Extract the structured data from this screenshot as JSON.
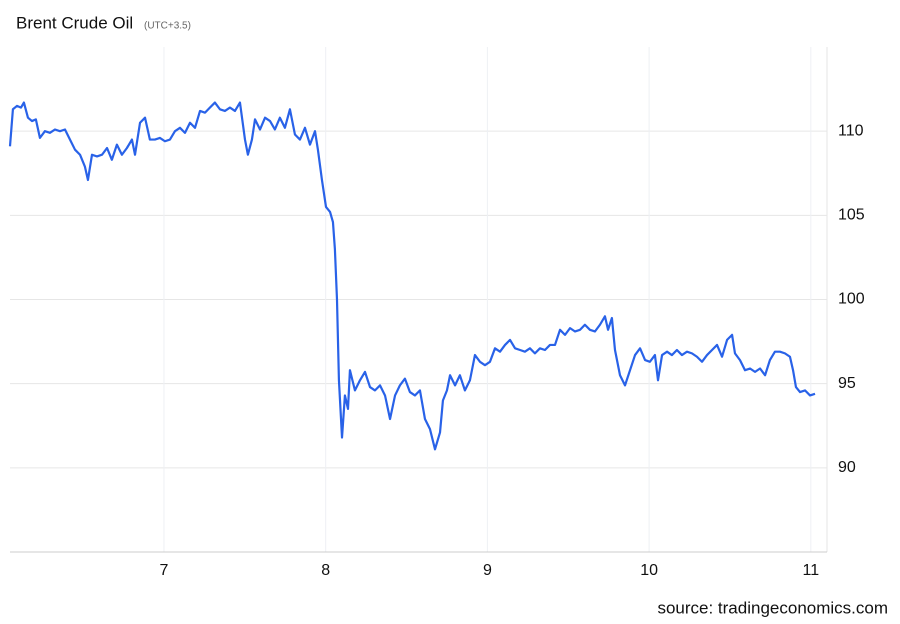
{
  "chart_data": {
    "type": "line",
    "title": "Brent Crude Oil",
    "subtitle": "(UTC+3.5)",
    "source": "source: tradingeconomics.com",
    "x": [
      6.048,
      6.066,
      6.091,
      6.116,
      6.134,
      6.159,
      6.184,
      6.208,
      6.233,
      6.264,
      6.295,
      6.326,
      6.357,
      6.388,
      6.419,
      6.45,
      6.481,
      6.511,
      6.53,
      6.555,
      6.586,
      6.617,
      6.648,
      6.678,
      6.709,
      6.74,
      6.771,
      6.802,
      6.821,
      6.852,
      6.883,
      6.913,
      6.944,
      6.975,
      7.006,
      7.037,
      7.068,
      7.099,
      7.13,
      7.161,
      7.192,
      7.223,
      7.254,
      7.284,
      7.315,
      7.346,
      7.377,
      7.408,
      7.439,
      7.47,
      7.501,
      7.519,
      7.544,
      7.563,
      7.594,
      7.625,
      7.656,
      7.686,
      7.717,
      7.748,
      7.779,
      7.81,
      7.841,
      7.872,
      7.903,
      7.934,
      7.952,
      7.977,
      8.002,
      8.027,
      8.045,
      8.057,
      8.07,
      8.082,
      8.101,
      8.119,
      8.138,
      8.15,
      8.181,
      8.212,
      8.243,
      8.274,
      8.305,
      8.336,
      8.367,
      8.398,
      8.429,
      8.459,
      8.49,
      8.521,
      8.552,
      8.583,
      8.614,
      8.645,
      8.676,
      8.707,
      8.725,
      8.75,
      8.769,
      8.8,
      8.83,
      8.861,
      8.892,
      8.923,
      8.954,
      8.985,
      9.016,
      9.047,
      9.078,
      9.109,
      9.14,
      9.171,
      9.202,
      9.232,
      9.263,
      9.294,
      9.325,
      9.356,
      9.387,
      9.418,
      9.449,
      9.48,
      9.511,
      9.542,
      9.573,
      9.603,
      9.634,
      9.665,
      9.696,
      9.727,
      9.746,
      9.77,
      9.789,
      9.82,
      9.851,
      9.882,
      9.913,
      9.944,
      9.975,
      10.005,
      10.036,
      10.055,
      10.08,
      10.111,
      10.141,
      10.172,
      10.203,
      10.234,
      10.265,
      10.296,
      10.327,
      10.358,
      10.389,
      10.42,
      10.451,
      10.482,
      10.513,
      10.531,
      10.562,
      10.593,
      10.624,
      10.655,
      10.686,
      10.717,
      10.747,
      10.778,
      10.809,
      10.84,
      10.871,
      10.89,
      10.908,
      10.933,
      10.964,
      10.995,
      11.026
    ],
    "series": [
      {
        "name": "Brent Crude Oil",
        "color": "#2962e8",
        "values": [
          109.1,
          111.3,
          111.5,
          111.4,
          111.7,
          110.8,
          110.6,
          110.7,
          109.6,
          110.0,
          109.9,
          110.1,
          110.0,
          110.1,
          109.5,
          108.9,
          108.6,
          107.9,
          107.1,
          108.6,
          108.5,
          108.6,
          109.0,
          108.3,
          109.2,
          108.6,
          109.0,
          109.5,
          108.6,
          110.5,
          110.8,
          109.5,
          109.5,
          109.6,
          109.4,
          109.5,
          110.0,
          110.2,
          109.9,
          110.5,
          110.2,
          111.2,
          111.1,
          111.4,
          111.7,
          111.3,
          111.2,
          111.4,
          111.2,
          111.7,
          109.5,
          108.6,
          109.5,
          110.7,
          110.1,
          110.8,
          110.6,
          110.1,
          110.8,
          110.2,
          111.3,
          109.8,
          109.5,
          110.2,
          109.2,
          110.0,
          108.9,
          107.1,
          105.5,
          105.2,
          104.6,
          103.0,
          100.0,
          95.2,
          91.8,
          94.3,
          93.5,
          95.8,
          94.6,
          95.2,
          95.7,
          94.8,
          94.6,
          94.9,
          94.3,
          92.9,
          94.3,
          94.9,
          95.3,
          94.5,
          94.3,
          94.6,
          92.9,
          92.3,
          91.1,
          92.1,
          94.0,
          94.6,
          95.5,
          94.9,
          95.5,
          94.6,
          95.2,
          96.7,
          96.3,
          96.1,
          96.3,
          97.1,
          96.9,
          97.3,
          97.6,
          97.1,
          97.0,
          96.9,
          97.1,
          96.8,
          97.1,
          97.0,
          97.3,
          97.3,
          98.2,
          97.9,
          98.3,
          98.1,
          98.2,
          98.5,
          98.2,
          98.1,
          98.5,
          99.0,
          98.2,
          98.9,
          97.0,
          95.5,
          94.9,
          95.8,
          96.7,
          97.1,
          96.4,
          96.3,
          96.7,
          95.2,
          96.7,
          96.9,
          96.7,
          97.0,
          96.7,
          96.9,
          96.8,
          96.6,
          96.3,
          96.7,
          97.0,
          97.3,
          96.6,
          97.6,
          97.9,
          96.8,
          96.4,
          95.8,
          95.9,
          95.7,
          95.9,
          95.5,
          96.4,
          96.9,
          96.9,
          96.8,
          96.6,
          95.8,
          94.8,
          94.5,
          94.6,
          94.3,
          94.4
        ]
      }
    ],
    "xlim": [
      6.048,
      11.1
    ],
    "xticks": [
      7,
      8,
      9,
      10,
      11
    ],
    "ylim": [
      85,
      115
    ],
    "yticks": [
      90,
      95,
      100,
      105,
      110
    ],
    "grid": true
  }
}
